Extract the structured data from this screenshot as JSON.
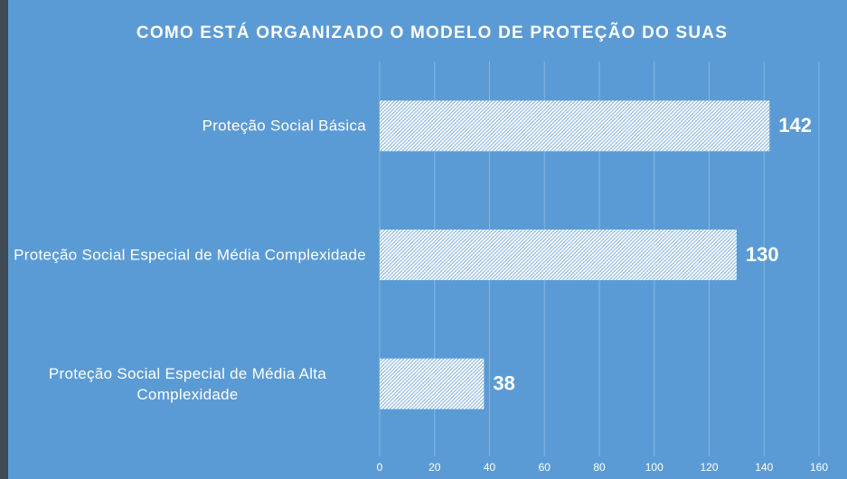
{
  "chart_data": {
    "type": "barh",
    "title": "COMO ESTÁ ORGANIZADO O MODELO DE PROTEÇÃO DO SUAS",
    "categories": [
      "Proteção Social Básica",
      "Proteção Social Especial de Média Complexidade",
      "Proteção Social Especial de Média Alta Complexidade"
    ],
    "values": [
      142,
      130,
      38
    ],
    "color": "#ffffff",
    "xlim": [
      0,
      160
    ],
    "xticks": [
      0,
      20,
      40,
      60,
      80,
      100,
      120,
      140,
      160
    ],
    "grid": true
  }
}
